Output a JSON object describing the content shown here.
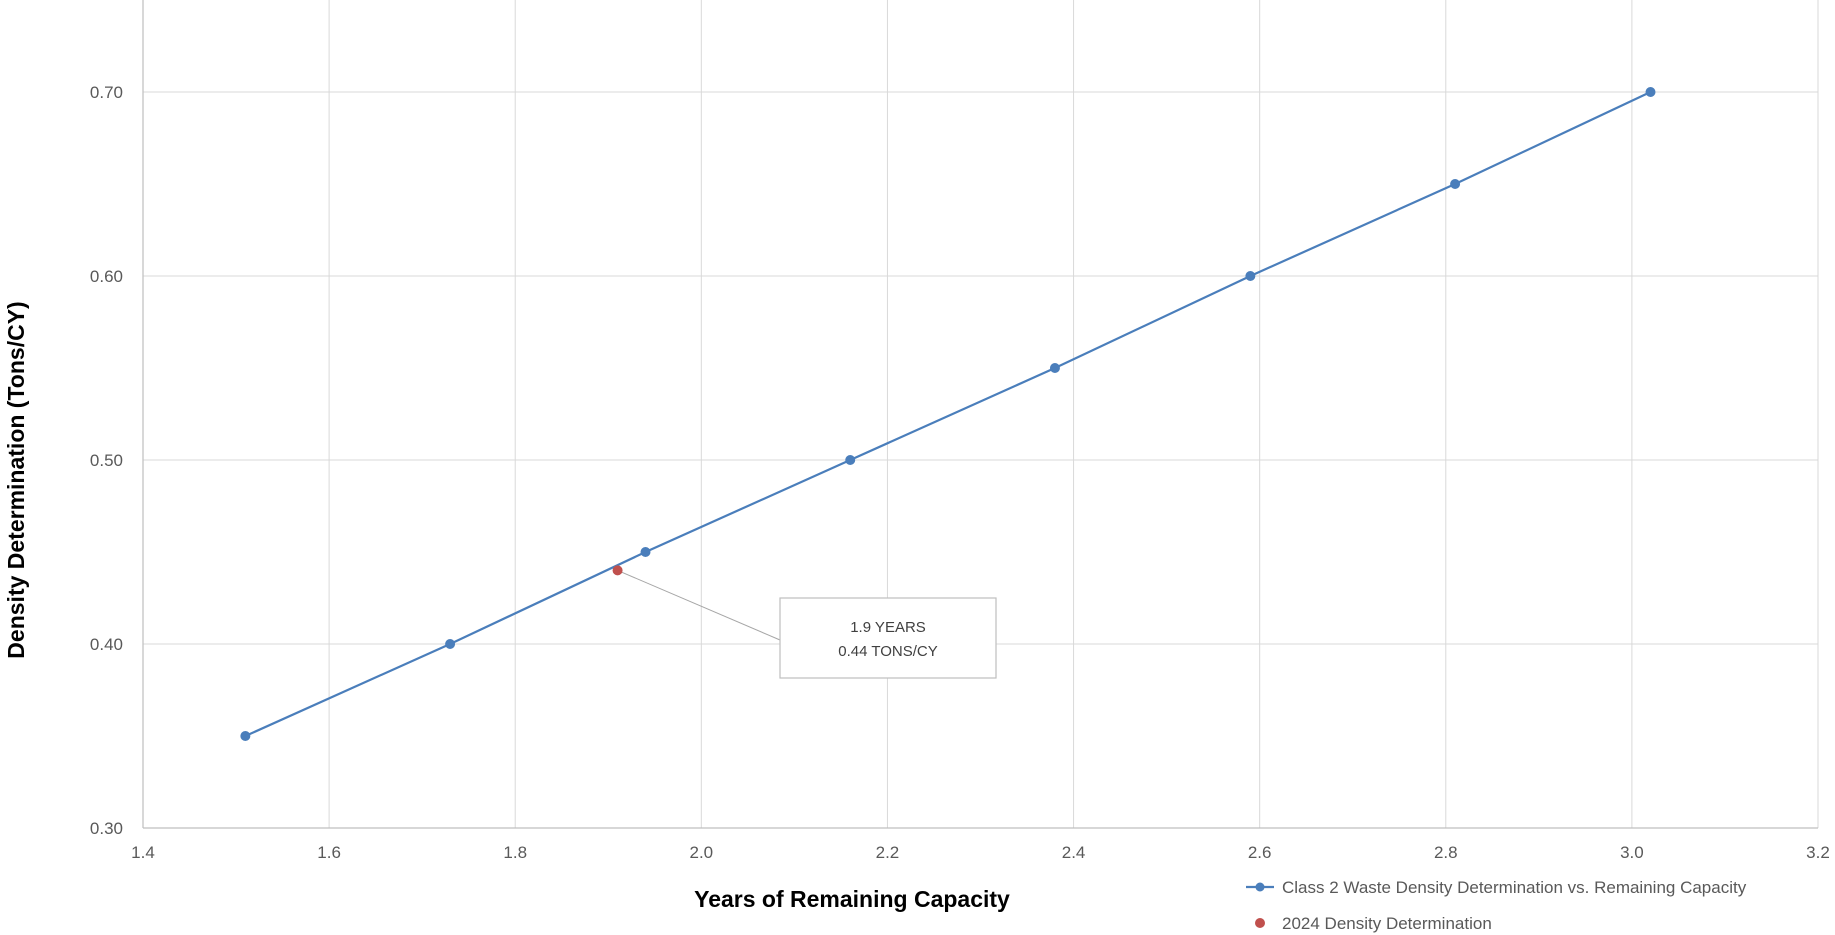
{
  "chart_data": {
    "type": "line",
    "xlabel": "Years of Remaining Capacity",
    "ylabel": "Density Determination (Tons/CY)",
    "xlim": [
      1.4,
      3.2
    ],
    "ylim": [
      0.3,
      0.75
    ],
    "xticks": [
      1.4,
      1.6,
      1.8,
      2.0,
      2.2,
      2.4,
      2.6,
      2.8,
      3.0,
      3.2
    ],
    "xtick_labels": [
      "1.4",
      "1.6",
      "1.8",
      "2.0",
      "2.2",
      "2.4",
      "2.6",
      "2.8",
      "3.0",
      "3.2"
    ],
    "yticks": [
      0.3,
      0.4,
      0.5,
      0.6,
      0.7
    ],
    "ytick_labels": [
      "0.30",
      "0.40",
      "0.50",
      "0.60",
      "0.70"
    ],
    "grid": true,
    "legend_position": "bottom-right",
    "series": [
      {
        "name": "Class 2 Waste Density Determination vs. Remaining Capacity",
        "color": "#4a7ebb",
        "marker": "circle",
        "line": true,
        "x": [
          1.51,
          1.73,
          1.94,
          2.16,
          2.38,
          2.59,
          2.81,
          3.02
        ],
        "y": [
          0.35,
          0.4,
          0.45,
          0.5,
          0.55,
          0.6,
          0.65,
          0.7
        ]
      },
      {
        "name": "2024 Density Determination",
        "color": "#c0504d",
        "marker": "circle",
        "line": false,
        "x": [
          1.91
        ],
        "y": [
          0.44
        ]
      }
    ],
    "annotation": {
      "line1": "1.9 YEARS",
      "line2": "0.44 TONS/CY",
      "x": 1.91,
      "y": 0.44
    }
  }
}
